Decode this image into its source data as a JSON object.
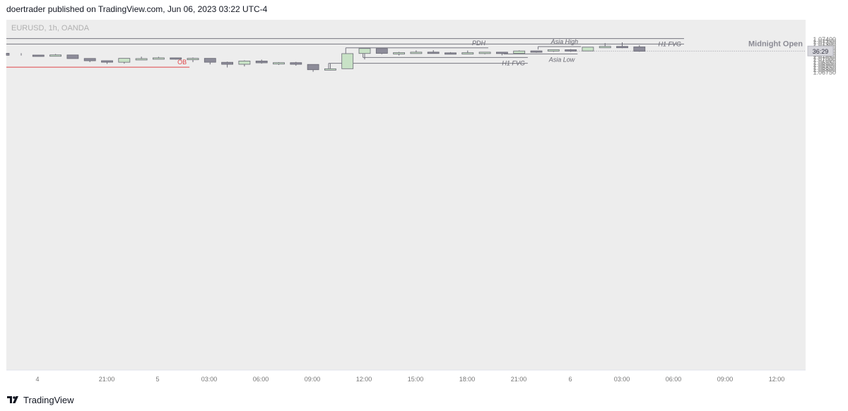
{
  "header": {
    "published_line": "doertrader published on TradingView.com, Jun 06, 2023 03:22 UTC-4"
  },
  "footer": {
    "brand": "TradingView",
    "logo_icon": "tradingview-logo-icon"
  },
  "colors": {
    "background": "#ededed",
    "bull_fill": "#c8e2c6",
    "bear_fill": "#8d8c99",
    "candle_border": "#6a6a75",
    "level_line": "#777780",
    "ob_line": "#e0464a",
    "axis_text": "#777777"
  },
  "chart_data": {
    "type": "candlestick",
    "symbol_label": "EURUSD, 1h, OANDA",
    "x_ticks": [
      "4",
      "21:00",
      "5",
      "03:00",
      "06:00",
      "09:00",
      "12:00",
      "15:00",
      "18:00",
      "21:00",
      "6",
      "03:00",
      "06:00",
      "09:00",
      "12:00"
    ],
    "y_ticks": [
      "1.07400",
      "1.07350",
      "1.07300",
      "1.07250",
      "1.07200",
      "1.07150",
      "1.07100",
      "1.07050",
      "1.07000",
      "1.06950",
      "1.06900",
      "1.06850",
      "1.06800",
      "1.06750"
    ],
    "ylim": [
      1.0674,
      1.0743
    ],
    "price_label": "36:29",
    "price_label_value": 1.0716,
    "grid": false,
    "candles": [
      {
        "o": 1.07115,
        "h": 1.07115,
        "l": 1.0707,
        "c": 1.07075
      },
      {
        "o": 1.0708,
        "h": 1.07085,
        "l": 1.07055,
        "c": 1.07078
      },
      {
        "o": 1.07075,
        "h": 1.071,
        "l": 1.07075,
        "c": 1.07083
      },
      {
        "o": 1.07082,
        "h": 1.07083,
        "l": 1.0701,
        "c": 1.0701
      },
      {
        "o": 1.07013,
        "h": 1.07013,
        "l": 1.0694,
        "c": 1.06967
      },
      {
        "o": 1.06968,
        "h": 1.0697,
        "l": 1.06905,
        "c": 1.06938
      },
      {
        "o": 1.06938,
        "h": 1.07015,
        "l": 1.0691,
        "c": 1.07015
      },
      {
        "o": 1.07,
        "h": 1.07048,
        "l": 1.06995,
        "c": 1.0701
      },
      {
        "o": 1.07002,
        "h": 1.07045,
        "l": 1.06995,
        "c": 1.07025
      },
      {
        "o": 1.07025,
        "h": 1.0703,
        "l": 1.0699,
        "c": 1.07001
      },
      {
        "o": 1.07,
        "h": 1.0703,
        "l": 1.0694,
        "c": 1.07015
      },
      {
        "o": 1.07015,
        "h": 1.07015,
        "l": 1.06895,
        "c": 1.06938
      },
      {
        "o": 1.06937,
        "h": 1.0695,
        "l": 1.06835,
        "c": 1.06897
      },
      {
        "o": 1.06897,
        "h": 1.06975,
        "l": 1.06855,
        "c": 1.06962
      },
      {
        "o": 1.06962,
        "h": 1.0699,
        "l": 1.0691,
        "c": 1.06926
      },
      {
        "o": 1.06925,
        "h": 1.0694,
        "l": 1.06885,
        "c": 1.0693
      },
      {
        "o": 1.0693,
        "h": 1.06945,
        "l": 1.0687,
        "c": 1.06897
      },
      {
        "o": 1.06895,
        "h": 1.06895,
        "l": 1.0675,
        "c": 1.0679
      },
      {
        "o": 1.0679,
        "h": 1.0691,
        "l": 1.06778,
        "c": 1.06809
      },
      {
        "o": 1.0681,
        "h": 1.07108,
        "l": 1.0681,
        "c": 1.07108
      },
      {
        "o": 1.07111,
        "h": 1.07209,
        "l": 1.06993,
        "c": 1.07209
      },
      {
        "o": 1.07209,
        "h": 1.07212,
        "l": 1.07097,
        "c": 1.07113
      },
      {
        "o": 1.07113,
        "h": 1.07142,
        "l": 1.07073,
        "c": 1.07128
      },
      {
        "o": 1.07128,
        "h": 1.07172,
        "l": 1.07107,
        "c": 1.07137
      },
      {
        "o": 1.07138,
        "h": 1.07177,
        "l": 1.07107,
        "c": 1.07125
      },
      {
        "o": 1.07124,
        "h": 1.07136,
        "l": 1.07095,
        "c": 1.07117
      },
      {
        "o": 1.07122,
        "h": 1.07169,
        "l": 1.07113,
        "c": 1.07127
      },
      {
        "o": 1.0713,
        "h": 1.0714,
        "l": 1.07095,
        "c": 1.07137
      },
      {
        "o": 1.07137,
        "h": 1.07137,
        "l": 1.07075,
        "c": 1.07112
      },
      {
        "o": 1.07112,
        "h": 1.07172,
        "l": 1.071,
        "c": 1.0716
      },
      {
        "o": 1.07162,
        "h": 1.07162,
        "l": 1.07124,
        "c": 1.07158
      },
      {
        "o": 1.07158,
        "h": 1.07185,
        "l": 1.07143,
        "c": 1.07186
      },
      {
        "o": 1.07185,
        "h": 1.07196,
        "l": 1.07144,
        "c": 1.07161
      },
      {
        "o": 1.07161,
        "h": 1.07236,
        "l": 1.07155,
        "c": 1.07236
      },
      {
        "o": 1.07236,
        "h": 1.07316,
        "l": 1.07224,
        "c": 1.07251
      },
      {
        "o": 1.07251,
        "h": 1.0733,
        "l": 1.07215,
        "c": 1.07242
      },
      {
        "o": 1.07242,
        "h": 1.07274,
        "l": 1.07145,
        "c": 1.07155
      }
    ],
    "lines": [
      {
        "name": "H1 FVG",
        "y": 1.07405,
        "x_start_candle": -1,
        "x_end_candle": 38.6
      },
      {
        "name": "",
        "y": 1.07298,
        "x_start_candle": -1,
        "x_end_candle": 38.6
      },
      {
        "name": "PDH",
        "y": 1.07222,
        "x_start_candle": 18.9,
        "x_end_candle": 27.2
      },
      {
        "name": "Asia High",
        "y": 1.07247,
        "x_start_candle": 30.1,
        "x_end_candle": 32.6
      },
      {
        "name": "Asia Low",
        "y": 1.07102,
        "x_start_candle": 28.1,
        "x_end_candle": 32.4
      },
      {
        "name": "H1 FVG",
        "y": 1.07033,
        "x_start_candle": 19.9,
        "x_end_candle": 29.5
      },
      {
        "name": "",
        "y": 1.06917,
        "x_start_candle": 17.9,
        "x_end_candle": 29.5
      },
      {
        "name": "OB",
        "y": 1.0684,
        "x_start_candle": -1,
        "x_end_candle": 9.8
      }
    ],
    "midnight_open": {
      "label": "Midnight Open",
      "y": 1.07157,
      "x_start_candle": 32.0
    }
  }
}
